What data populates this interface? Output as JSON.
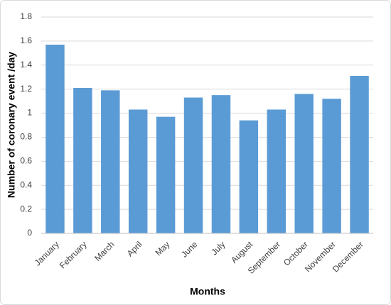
{
  "chart_data": {
    "type": "bar",
    "x_label": "Months",
    "y_label": "Number of coronary event /day",
    "categories": [
      "January",
      "February",
      "March",
      "April",
      "May",
      "June",
      "July",
      "August",
      "September",
      "October",
      "November",
      "December"
    ],
    "values": [
      1.57,
      1.21,
      1.19,
      1.03,
      0.97,
      1.13,
      1.15,
      0.94,
      1.03,
      1.16,
      1.12,
      1.31
    ],
    "color": "#5b9bd5",
    "ylim": [
      0,
      1.8
    ],
    "yticks": [
      0,
      0.2,
      0.4,
      0.6,
      0.8,
      1,
      1.2,
      1.4,
      1.6,
      1.8
    ],
    "grid": true
  }
}
